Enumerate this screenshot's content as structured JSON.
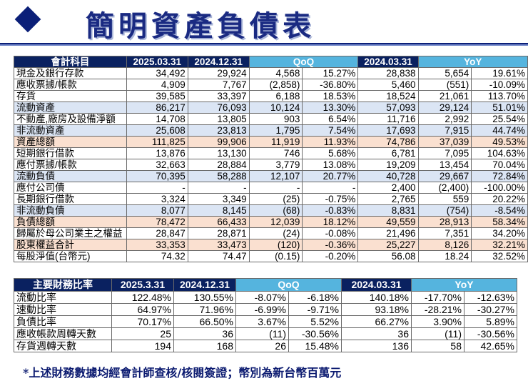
{
  "title": "簡明資產負債表",
  "footnote": "*上述財務數據均經會計師查核/核閱簽證；幣別為新台幣百萬元",
  "balance_sheet": {
    "headers": [
      "會計科目",
      "2025.03.31",
      "2024.12.31",
      "QoQ",
      "2024.03.31",
      "YoY"
    ],
    "rows": [
      {
        "style": "",
        "cells": [
          "現金及銀行存款",
          "34,492",
          "29,924",
          "4,568",
          "15.27%",
          "28,838",
          "5,654",
          "19.61%"
        ]
      },
      {
        "style": "",
        "cells": [
          "應收票據/帳款",
          "4,909",
          "7,767",
          "(2,858)",
          "-36.80%",
          "5,460",
          "(551)",
          "-10.09%"
        ]
      },
      {
        "style": "",
        "cells": [
          "存貨",
          "39,585",
          "33,397",
          "6,188",
          "18.53%",
          "18,524",
          "21,061",
          "113.70%"
        ]
      },
      {
        "style": "blue",
        "cells": [
          "流動資產",
          "86,217",
          "76,093",
          "10,124",
          "13.30%",
          "57,093",
          "29,124",
          "51.01%"
        ]
      },
      {
        "style": "",
        "cells": [
          "不動產,廠房及設備淨額",
          "14,708",
          "13,805",
          "903",
          "6.54%",
          "11,716",
          "2,992",
          "25.54%"
        ]
      },
      {
        "style": "blue",
        "cells": [
          "非流動資產",
          "25,608",
          "23,813",
          "1,795",
          "7.54%",
          "17,693",
          "7,915",
          "44.74%"
        ]
      },
      {
        "style": "peach",
        "cells": [
          "資產總額",
          "111,825",
          "99,906",
          "11,919",
          "11.93%",
          "74,786",
          "37,039",
          "49.53%"
        ]
      },
      {
        "style": "",
        "cells": [
          "短期銀行借款",
          "13,876",
          "13,130",
          "746",
          "5.68%",
          "6,781",
          "7,095",
          "104.63%"
        ]
      },
      {
        "style": "",
        "cells": [
          "應付票據/帳款",
          "32,663",
          "28,884",
          "3,779",
          "13.08%",
          "19,209",
          "13,454",
          "70.04%"
        ]
      },
      {
        "style": "blue",
        "cells": [
          "流動負債",
          "70,395",
          "58,288",
          "12,107",
          "20.77%",
          "40,728",
          "29,667",
          "72.84%"
        ]
      },
      {
        "style": "",
        "cells": [
          "應付公司債",
          "-",
          "-",
          "-",
          "-",
          "2,400",
          "(2,400)",
          "-100.00%"
        ]
      },
      {
        "style": "",
        "cells": [
          "長期銀行借款",
          "3,324",
          "3,349",
          "(25)",
          "-0.75%",
          "2,765",
          "559",
          "20.22%"
        ]
      },
      {
        "style": "blue",
        "cells": [
          "非流動負債",
          "8,077",
          "8,145",
          "(68)",
          "-0.83%",
          "8,831",
          "(754)",
          "-8.54%"
        ]
      },
      {
        "style": "peach",
        "cells": [
          "負債總額",
          "78,472",
          "66,433",
          "12,039",
          "18.12%",
          "49,559",
          "28,913",
          "58.34%"
        ]
      },
      {
        "style": "",
        "cells": [
          "歸屬於母公司業主之權益",
          "28,847",
          "28,871",
          "(24)",
          "-0.08%",
          "21,496",
          "7,351",
          "34.20%"
        ]
      },
      {
        "style": "peach",
        "cells": [
          "股東權益合計",
          "33,353",
          "33,473",
          "(120)",
          "-0.36%",
          "25,227",
          "8,126",
          "32.21%"
        ]
      },
      {
        "style": "",
        "cells": [
          "每股淨值(台幣元)",
          "74.32",
          "74.47",
          "(0.15)",
          "-0.20%",
          "56.08",
          "18.24",
          "32.52%"
        ]
      }
    ]
  },
  "ratios": {
    "headers": [
      "主要財務比率",
      "2025.3.31",
      "2024.12.31",
      "QoQ",
      "2024.03.31",
      "YoY"
    ],
    "rows": [
      {
        "cells": [
          "流動比率",
          "122.48%",
          "130.55%",
          "-8.07%",
          "-6.18%",
          "140.18%",
          "-17.70%",
          "-12.63%"
        ]
      },
      {
        "cells": [
          "速動比率",
          "64.97%",
          "71.96%",
          "-6.99%",
          "-9.71%",
          "93.18%",
          "-28.21%",
          "-30.27%"
        ]
      },
      {
        "cells": [
          "負債比率",
          "70.17%",
          "66.50%",
          "3.67%",
          "5.52%",
          "66.27%",
          "3.90%",
          "5.89%"
        ]
      },
      {
        "cells": [
          "應收帳款周轉天數",
          "25",
          "36",
          "(11)",
          "-30.56%",
          "36",
          "(11)",
          "-30.56%"
        ]
      },
      {
        "cells": [
          "存貨週轉天數",
          "194",
          "168",
          "26",
          "15.48%",
          "136",
          "58",
          "42.65%"
        ]
      }
    ]
  },
  "colors": {
    "header_dark": "#0a2160",
    "header_light": "#55b4de",
    "row_blue": "#dbe5f4",
    "row_peach": "#fae0d0",
    "title": "#1a2a82"
  }
}
